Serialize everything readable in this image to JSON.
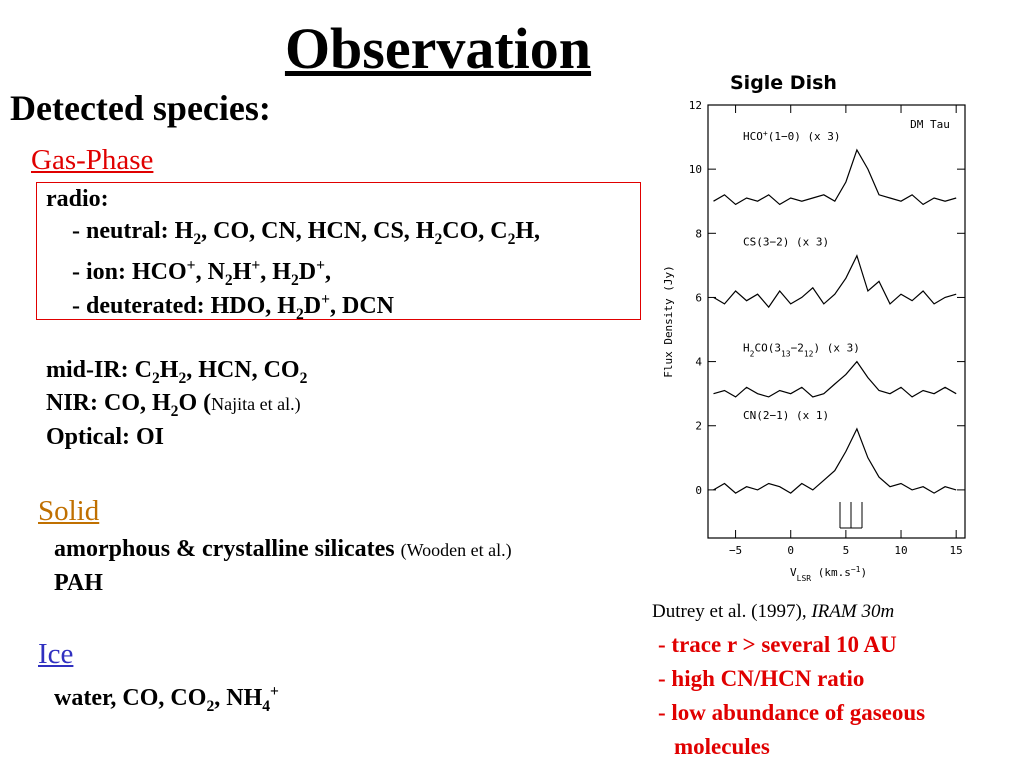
{
  "title": "Observation",
  "heading": "Detected species:",
  "gas_phase": {
    "title": "Gas-Phase",
    "radio": [
      [
        "radio:"
      ],
      [
        "- neutral: H",
        {
          "sub": "2"
        },
        ", CO, CN, HCN, CS, H",
        {
          "sub": "2"
        },
        "CO, C",
        {
          "sub": "2"
        },
        "H,"
      ],
      [
        "- ion: HCO",
        {
          "sup": "+"
        },
        ", N",
        {
          "sub": "2"
        },
        "H",
        {
          "sup": "+"
        },
        ", H",
        {
          "sub": "2"
        },
        "D",
        {
          "sup": "+"
        },
        ","
      ],
      [
        "- deuterated: HDO, H",
        {
          "sub": "2"
        },
        "D",
        {
          "sup": "+"
        },
        ", DCN"
      ]
    ],
    "other": [
      [
        "mid-IR: C",
        {
          "sub": "2"
        },
        "H",
        {
          "sub": "2"
        },
        ", HCN, CO",
        {
          "sub": "2"
        }
      ],
      [
        "NIR: CO, H",
        {
          "sub": "2"
        },
        "O  (",
        {
          "small": "Najita et al.)"
        }
      ],
      [
        "Optical: OI"
      ]
    ]
  },
  "solid": {
    "title": "Solid",
    "lines": [
      [
        "amorphous & crystalline silicates ",
        {
          "small": "(Wooden et al.)"
        }
      ],
      [
        "PAH"
      ]
    ]
  },
  "ice": {
    "title": "Ice",
    "lines": [
      [
        "water, CO, CO",
        {
          "sub": "2"
        },
        ", NH",
        {
          "sub": "4"
        },
        {
          "sup": "+"
        }
      ]
    ]
  },
  "figure_caption": "Sigle Dish",
  "reference": [
    "Dutrey et al. (1997), ",
    {
      "italic": "IRAM 30m"
    }
  ],
  "notes": [
    "- trace r > several 10 AU",
    "- high CN/HCN ratio",
    "- low abundance of gaseous molecules"
  ],
  "chart_data": {
    "type": "line",
    "title": "DM Tau",
    "xlabel": [
      "V",
      {
        "sub": "LSR"
      },
      " (km.s",
      {
        "sup": "−1"
      },
      ")"
    ],
    "ylabel": "Flux Density (Jy)",
    "xlim": [
      -7.5,
      15.8
    ],
    "ylim": [
      -1.5,
      12
    ],
    "xticks": [
      {
        "value": -5,
        "label": "−5"
      },
      0,
      5,
      10,
      15
    ],
    "yticks": [
      0,
      2,
      4,
      6,
      8,
      10,
      12
    ],
    "color": "#000000",
    "x": [
      -7,
      -6,
      -5,
      -4,
      -3,
      -2,
      -1,
      0,
      1,
      2,
      3,
      4,
      5,
      6,
      7,
      8,
      9,
      10,
      11,
      12,
      13,
      14,
      15
    ],
    "series": [
      {
        "name": [
          "HCO",
          {
            "sup": "+"
          },
          "(1−0) (x 3)"
        ],
        "values": [
          9.0,
          9.2,
          8.9,
          9.1,
          9.0,
          9.2,
          8.9,
          9.1,
          9.0,
          9.1,
          9.2,
          9.0,
          9.6,
          10.6,
          10.0,
          9.2,
          9.1,
          9.0,
          9.2,
          8.9,
          9.1,
          9.0,
          9.1
        ]
      },
      {
        "name": [
          "CS(3−2) (x 3)"
        ],
        "values": [
          6.0,
          5.8,
          6.2,
          5.9,
          6.1,
          5.7,
          6.2,
          5.8,
          6.0,
          6.3,
          5.8,
          6.1,
          6.6,
          7.3,
          6.2,
          6.5,
          5.8,
          6.1,
          5.9,
          6.2,
          5.8,
          6.0,
          6.1
        ]
      },
      {
        "name": [
          "H",
          {
            "sub": "2"
          },
          "CO(3",
          {
            "sub": "13"
          },
          "−2",
          {
            "sub": "12"
          },
          ") (x 3)"
        ],
        "values": [
          3.0,
          3.1,
          2.9,
          3.2,
          3.0,
          2.9,
          3.1,
          3.0,
          3.2,
          2.9,
          3.0,
          3.3,
          3.6,
          4.0,
          3.5,
          3.1,
          3.0,
          3.2,
          2.9,
          3.1,
          3.0,
          3.2,
          3.0
        ]
      },
      {
        "name": [
          "CN(2−1) (x 1)"
        ],
        "values": [
          0.0,
          0.2,
          -0.1,
          0.1,
          0.0,
          0.2,
          0.1,
          -0.1,
          0.2,
          0.0,
          0.3,
          0.6,
          1.2,
          1.9,
          1.0,
          0.4,
          0.1,
          0.2,
          0.0,
          0.1,
          -0.1,
          0.1,
          0.0
        ]
      }
    ]
  }
}
